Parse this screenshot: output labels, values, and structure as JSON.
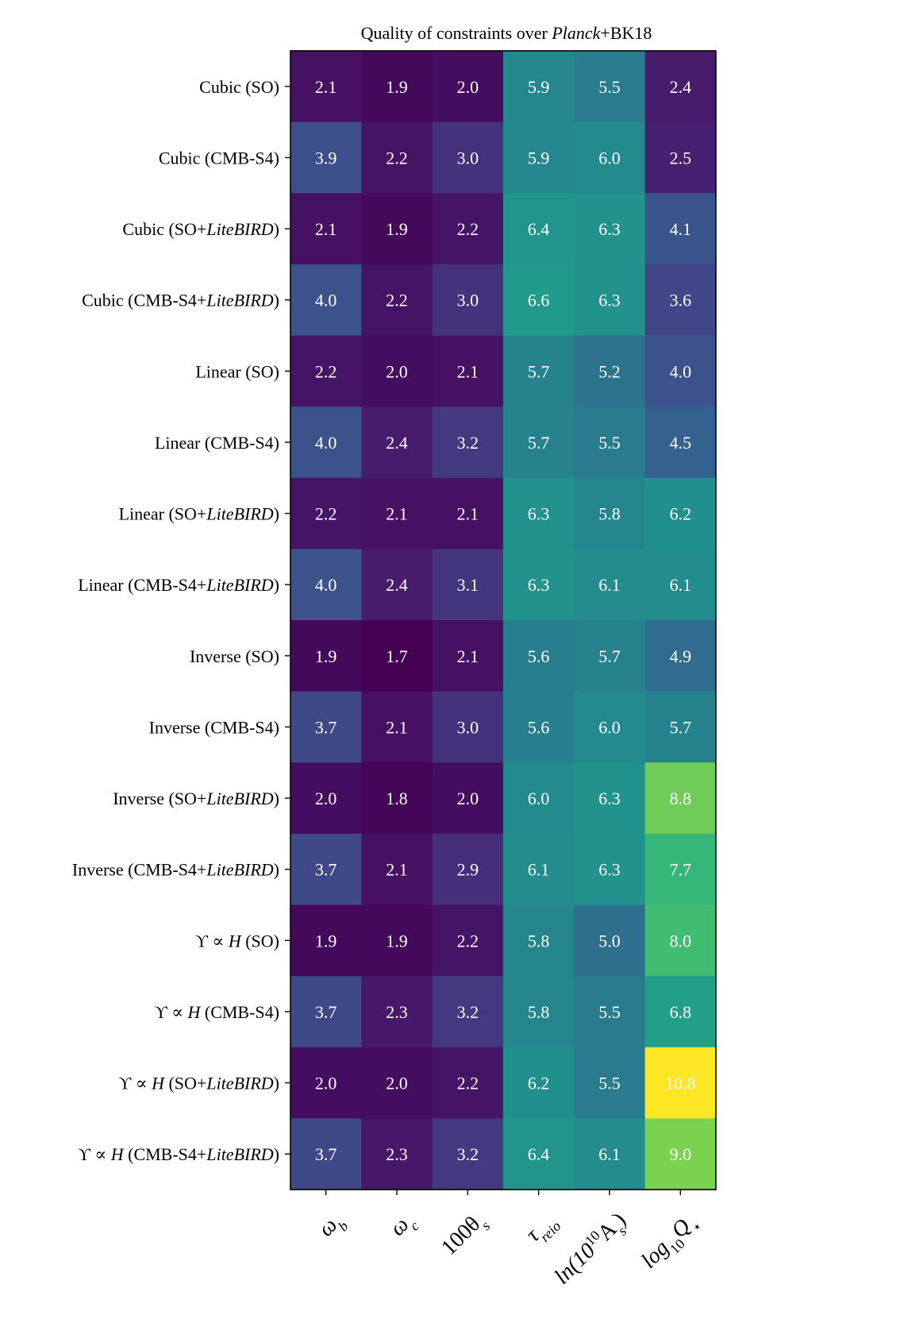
{
  "chart_data": {
    "type": "heatmap",
    "title": {
      "prefix": "Quality of constraints over ",
      "emph": "Planck",
      "suffix": "+BK18"
    },
    "rows": [
      {
        "parts": [
          {
            "t": "Cubic (SO)"
          }
        ]
      },
      {
        "parts": [
          {
            "t": "Cubic (CMB-S4)"
          }
        ]
      },
      {
        "parts": [
          {
            "t": "Cubic (SO+"
          },
          {
            "t": "LiteBIRD",
            "i": true
          },
          {
            "t": ")"
          }
        ]
      },
      {
        "parts": [
          {
            "t": "Cubic (CMB-S4+"
          },
          {
            "t": "LiteBIRD",
            "i": true
          },
          {
            "t": ")"
          }
        ]
      },
      {
        "parts": [
          {
            "t": "Linear (SO)"
          }
        ]
      },
      {
        "parts": [
          {
            "t": "Linear (CMB-S4)"
          }
        ]
      },
      {
        "parts": [
          {
            "t": "Linear (SO+"
          },
          {
            "t": "LiteBIRD",
            "i": true
          },
          {
            "t": ")"
          }
        ]
      },
      {
        "parts": [
          {
            "t": "Linear (CMB-S4+"
          },
          {
            "t": "LiteBIRD",
            "i": true
          },
          {
            "t": ")"
          }
        ]
      },
      {
        "parts": [
          {
            "t": "Inverse (SO)"
          }
        ]
      },
      {
        "parts": [
          {
            "t": "Inverse (CMB-S4)"
          }
        ]
      },
      {
        "parts": [
          {
            "t": "Inverse (SO+"
          },
          {
            "t": "LiteBIRD",
            "i": true
          },
          {
            "t": ")"
          }
        ]
      },
      {
        "parts": [
          {
            "t": "Inverse (CMB-S4+"
          },
          {
            "t": "LiteBIRD",
            "i": true
          },
          {
            "t": ")"
          }
        ]
      },
      {
        "parts": [
          {
            "t": "ϒ ∝ "
          },
          {
            "t": "H",
            "i": true
          },
          {
            "t": " (SO)"
          }
        ]
      },
      {
        "parts": [
          {
            "t": "ϒ ∝ "
          },
          {
            "t": "H",
            "i": true
          },
          {
            "t": " (CMB-S4)"
          }
        ]
      },
      {
        "parts": [
          {
            "t": "ϒ ∝ "
          },
          {
            "t": "H",
            "i": true
          },
          {
            "t": " (SO+"
          },
          {
            "t": "LiteBIRD",
            "i": true
          },
          {
            "t": ")"
          }
        ]
      },
      {
        "parts": [
          {
            "t": "ϒ ∝ "
          },
          {
            "t": "H",
            "i": true
          },
          {
            "t": " (CMB-S4+"
          },
          {
            "t": "LiteBIRD",
            "i": true
          },
          {
            "t": ")"
          }
        ]
      }
    ],
    "columns": [
      {
        "base": "ω",
        "sub": "b"
      },
      {
        "base": "ω",
        "sub": "c"
      },
      {
        "base": "100θ",
        "sub": "s"
      },
      {
        "base": "τ",
        "sub": "reio"
      },
      {
        "base": "ln(10",
        "sup": "10",
        "tail": "A",
        "sub": "s",
        "end": ")"
      },
      {
        "base": "log",
        "sub": "10",
        "tail": "Q",
        "sub2": "⋆"
      }
    ],
    "values": [
      [
        2.1,
        1.9,
        2.0,
        5.9,
        5.5,
        2.4
      ],
      [
        3.9,
        2.2,
        3.0,
        5.9,
        6.0,
        2.5
      ],
      [
        2.1,
        1.9,
        2.2,
        6.4,
        6.3,
        4.1
      ],
      [
        4.0,
        2.2,
        3.0,
        6.6,
        6.3,
        3.6
      ],
      [
        2.2,
        2.0,
        2.1,
        5.7,
        5.2,
        4.0
      ],
      [
        4.0,
        2.4,
        3.2,
        5.7,
        5.5,
        4.5
      ],
      [
        2.2,
        2.1,
        2.1,
        6.3,
        5.8,
        6.2
      ],
      [
        4.0,
        2.4,
        3.1,
        6.3,
        6.1,
        6.1
      ],
      [
        1.9,
        1.7,
        2.1,
        5.6,
        5.7,
        4.9
      ],
      [
        3.7,
        2.1,
        3.0,
        5.6,
        6.0,
        5.7
      ],
      [
        2.0,
        1.8,
        2.0,
        6.0,
        6.3,
        8.8
      ],
      [
        3.7,
        2.1,
        2.9,
        6.1,
        6.3,
        7.7
      ],
      [
        1.9,
        1.9,
        2.2,
        5.8,
        5.0,
        8.0
      ],
      [
        3.7,
        2.3,
        3.2,
        5.8,
        5.5,
        6.8
      ],
      [
        2.0,
        2.0,
        2.2,
        6.2,
        5.5,
        10.8
      ],
      [
        3.7,
        2.3,
        3.2,
        6.4,
        6.1,
        9.0
      ]
    ],
    "colormap": "viridis",
    "vmin": 1.7,
    "vmax": 10.8,
    "colors": {
      "text": "#ffffff",
      "frame": "#000000"
    }
  }
}
